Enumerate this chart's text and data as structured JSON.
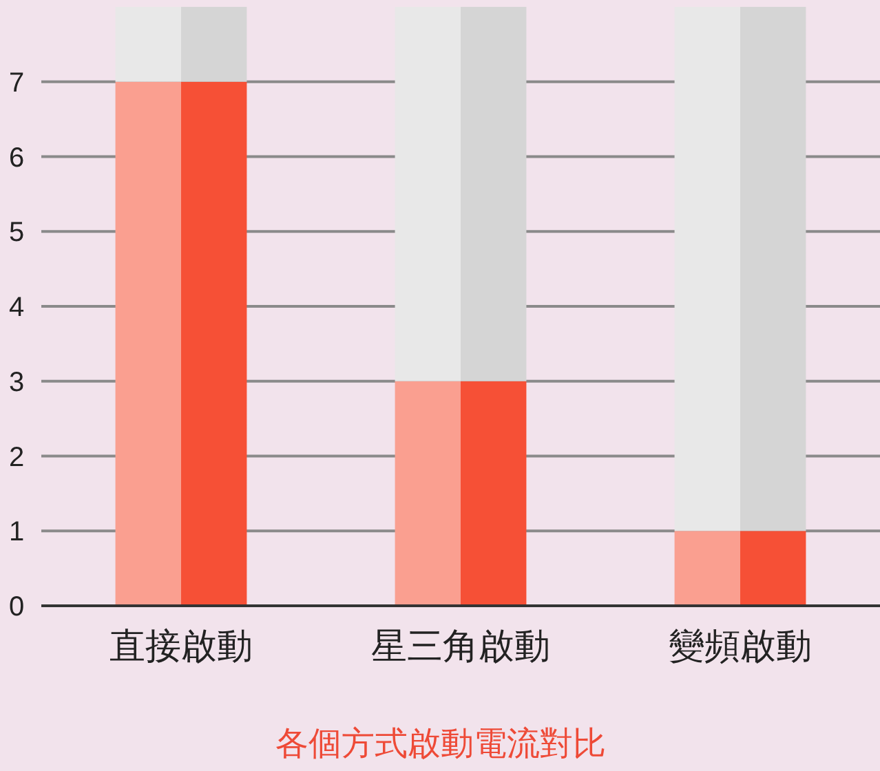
{
  "chart_data": {
    "type": "bar",
    "title": "各個方式啟動電流對比",
    "categories": [
      "直接啟動",
      "星三角啟動",
      "變頻啟動"
    ],
    "stacked": true,
    "series": [
      {
        "color": "#f65036",
        "values": [
          7,
          3,
          1
        ]
      },
      {
        "color": "#d5d5d5",
        "values": [
          1,
          5,
          7
        ]
      }
    ],
    "ylim": [
      0,
      8
    ],
    "yticks": [
      0,
      1,
      2,
      3,
      4,
      5,
      6,
      7
    ],
    "grid": "y"
  }
}
